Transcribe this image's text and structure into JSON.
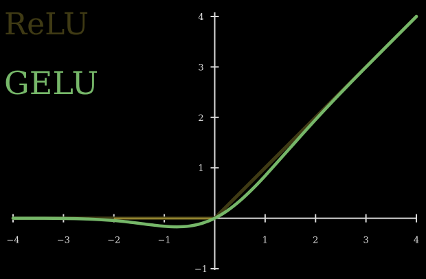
{
  "chart_data": {
    "type": "line",
    "title": "",
    "xlabel": "",
    "ylabel": "",
    "xlim": [
      -4,
      4
    ],
    "ylim": [
      -1,
      4
    ],
    "x_ticks": [
      -4,
      -3,
      -2,
      -1,
      1,
      2,
      3,
      4
    ],
    "y_ticks": [
      -1,
      1,
      2,
      3,
      4
    ],
    "x_tick_labels": [
      "−4",
      "−3",
      "−2",
      "−1",
      "1",
      "2",
      "3",
      "4"
    ],
    "y_tick_labels": [
      "−1",
      "1",
      "2",
      "3",
      "4"
    ],
    "grid": false,
    "legend_placement": "top-left",
    "series": [
      {
        "name": "ReLU",
        "color": "#3f3a14",
        "x": [
          -4,
          -3,
          -2,
          -1,
          0,
          1,
          2,
          3,
          4
        ],
        "y": [
          0,
          0,
          0,
          0,
          0,
          1,
          2,
          3,
          4
        ]
      },
      {
        "name": "GELU",
        "color": "#76b769",
        "x": [
          -4,
          -3.5,
          -3,
          -2.5,
          -2,
          -1.75,
          -1.5,
          -1.25,
          -1,
          -0.75,
          -0.5,
          -0.25,
          0,
          0.25,
          0.5,
          0.75,
          1,
          1.5,
          2,
          2.5,
          3,
          3.5,
          4
        ],
        "y": [
          -0.0001,
          -0.0008,
          -0.0036,
          -0.0155,
          -0.0455,
          -0.0702,
          -0.1004,
          -0.132,
          -0.1587,
          -0.17,
          -0.1543,
          -0.1003,
          0,
          0.1497,
          0.3457,
          0.58,
          0.8413,
          1.3996,
          1.9545,
          2.4845,
          2.9964,
          3.4992,
          3.9999
        ]
      }
    ],
    "axis_color": "#d9d9d9",
    "relu_zero_color": "#b5a23c"
  }
}
